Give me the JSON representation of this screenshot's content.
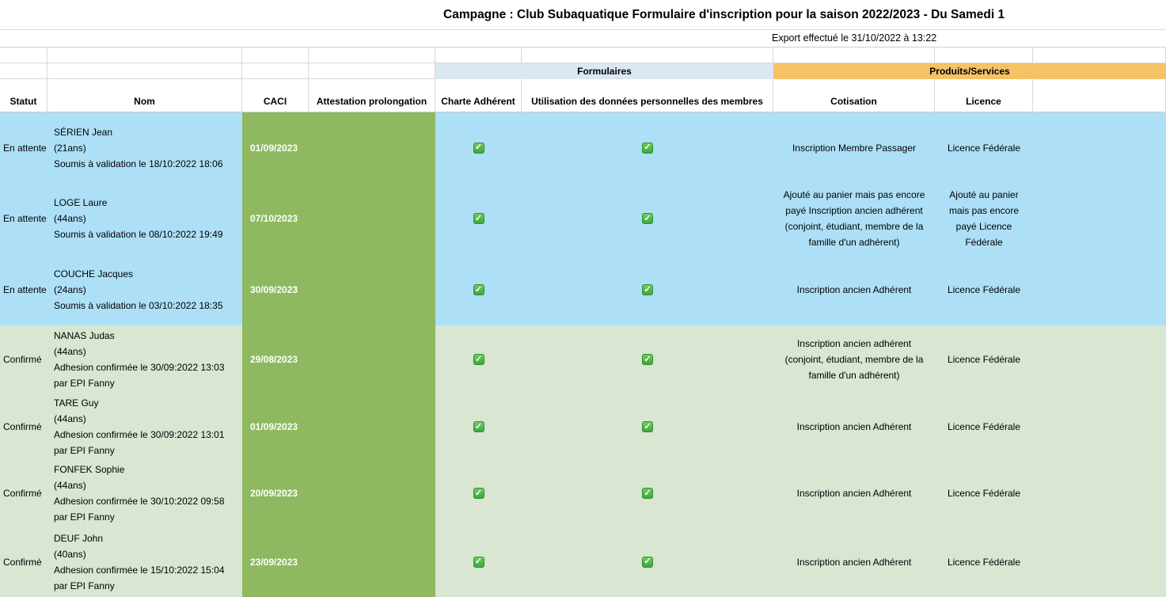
{
  "header": {
    "title": "Campagne : Club Subaquatique Formulaire d'inscription pour la saison 2022/2023 - Du Samedi 1",
    "export_info": "Export effectué le 31/10/2022 à 13:22"
  },
  "groups": {
    "formulaires": "Formulaires",
    "produits": "Produits/Services"
  },
  "columns": [
    "Statut",
    "Nom",
    "CACI",
    "Attestation prolongation",
    "Charte Adhérent",
    "Utilisation des données personnelles des membres",
    "Cotisation",
    "Licence"
  ],
  "colors": {
    "row_en_attente": "#ade0f7",
    "row_confirme": "#d8e6d2",
    "caci_band": "#8eb960",
    "formulaires_band": "#dbe8f2",
    "produits_band": "#f5c266",
    "checkbox_green": "#3aa83e"
  },
  "rows": [
    {
      "statut": "En attente",
      "nom": "SÉRIEN Jean\n(21ans)\nSoumis à validation le 18/10:2022 18:06",
      "caci": "01/09/2023",
      "charte_adherent_checked": true,
      "utilisation_donnees_checked": true,
      "cotisation": "Inscription Membre Passager",
      "licence": "Licence Fédérale"
    },
    {
      "statut": "En attente",
      "nom": "LOGE Laure\n(44ans)\nSoumis à validation le 08/10:2022 19:49",
      "caci": "07/10/2023",
      "charte_adherent_checked": true,
      "utilisation_donnees_checked": true,
      "cotisation": "Ajouté au panier mais pas encore payé Inscription ancien adhérent (conjoint, étudiant, membre de la famille d'un adhérent)",
      "licence": "Ajouté au panier mais pas encore payé Licence Fédérale"
    },
    {
      "statut": "En attente",
      "nom": "COUCHE Jacques\n(24ans)\nSoumis à validation le 03/10:2022 18:35",
      "caci": "30/09/2023",
      "charte_adherent_checked": true,
      "utilisation_donnees_checked": true,
      "cotisation": "Inscription ancien Adhérent",
      "licence": "Licence Fédérale"
    },
    {
      "statut": "Confirmé",
      "nom": "NANAS Judas\n(44ans)\nAdhesion confirmée le 30/09:2022 13:03\npar EPI Fanny",
      "caci": "29/08/2023",
      "charte_adherent_checked": true,
      "utilisation_donnees_checked": true,
      "cotisation": "Inscription ancien adhérent (conjoint, étudiant, membre de la famille d'un adhérent)",
      "licence": "Licence Fédérale"
    },
    {
      "statut": "Confirmé",
      "nom": "TARE Guy\n(44ans)\nAdhesion confirmée le 30/09:2022 13:01\npar EPI Fanny",
      "caci": "01/09/2023",
      "charte_adherent_checked": true,
      "utilisation_donnees_checked": true,
      "cotisation": "Inscription ancien Adhérent",
      "licence": "Licence Fédérale"
    },
    {
      "statut": "Confirmé",
      "nom": "FONFEK Sophie\n(44ans)\nAdhesion confirmée le 30/10:2022 09:58\npar EPI Fanny",
      "caci": "20/09/2023",
      "charte_adherent_checked": true,
      "utilisation_donnees_checked": true,
      "cotisation": "Inscription ancien Adhérent",
      "licence": "Licence Fédérale"
    },
    {
      "statut": "Confirmé",
      "nom": "DEUF John\n(40ans)\nAdhesion confirmée le 15/10:2022 15:04\npar EPI Fanny",
      "caci": "23/09/2023",
      "charte_adherent_checked": true,
      "utilisation_donnees_checked": true,
      "cotisation": "Inscription ancien Adhérent",
      "licence": "Licence Fédérale"
    }
  ]
}
